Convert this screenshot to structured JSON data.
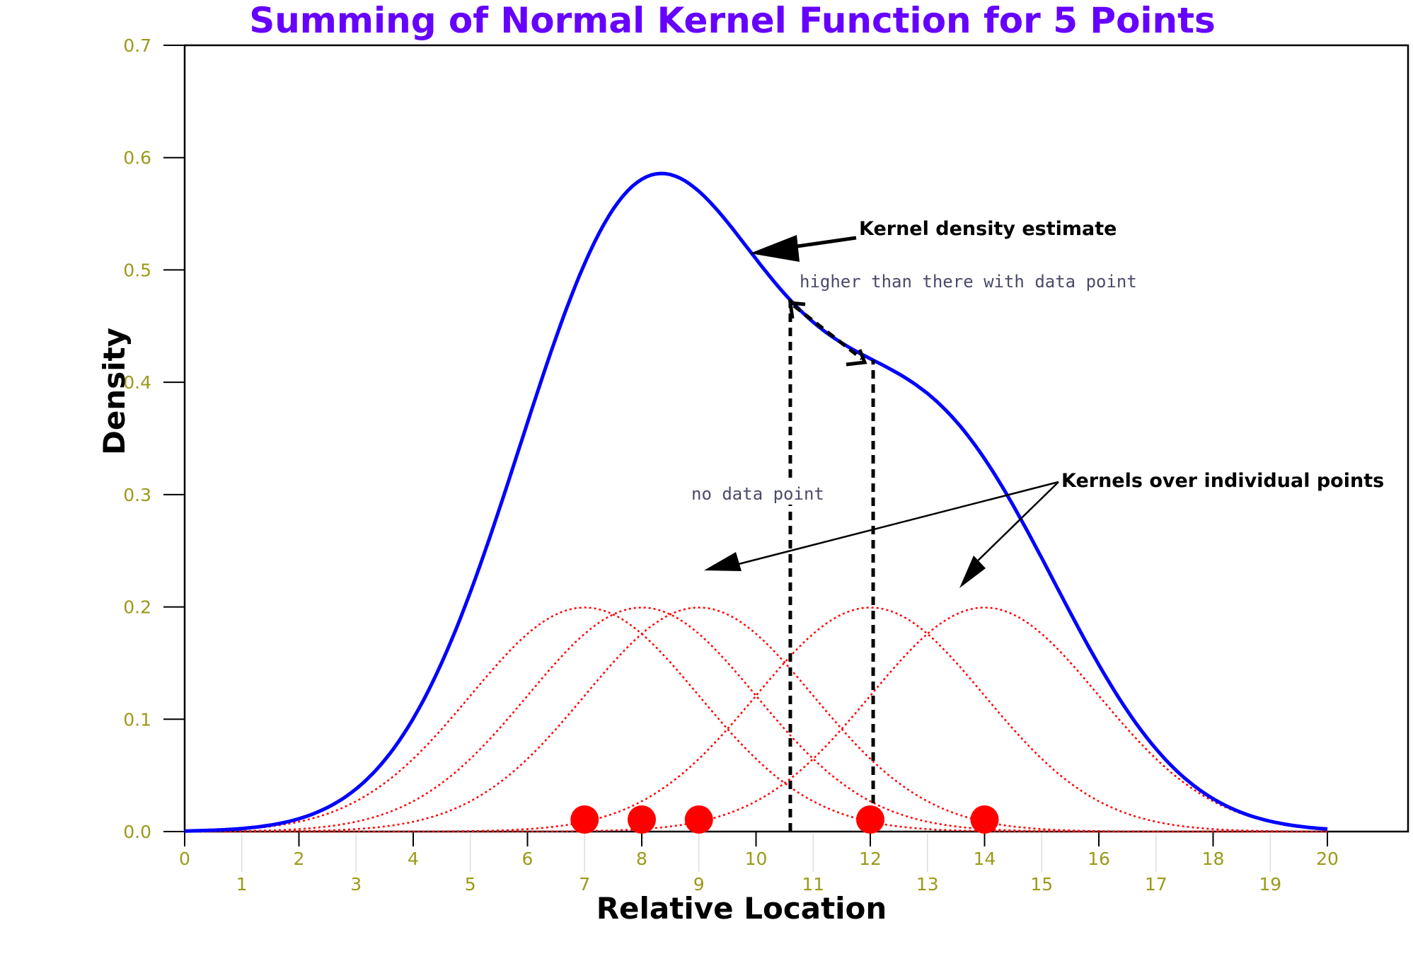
{
  "chart_data": {
    "type": "line",
    "title": "Summing of Normal Kernel Function for 5 Points",
    "xlabel": "Relative Location",
    "ylabel": "Density",
    "xlim": [
      0,
      20
    ],
    "ylim": [
      0,
      0.7
    ],
    "x_ticks_upper": [
      "0",
      "2",
      "4",
      "6",
      "8",
      "10",
      "12",
      "14",
      "16",
      "18",
      "20"
    ],
    "x_ticks_lower": [
      "1",
      "3",
      "5",
      "7",
      "9",
      "11",
      "13",
      "15",
      "17",
      "19"
    ],
    "y_ticks": [
      "0.0",
      "0.1",
      "0.2",
      "0.3",
      "0.4",
      "0.5",
      "0.6",
      "0.7"
    ],
    "grid": false,
    "data_points": [
      7,
      8,
      9,
      12,
      14
    ],
    "kernel": "normal",
    "kernel_sigma": 2,
    "kernel_peak": 0.1995,
    "series": [
      {
        "name": "Kernel density estimate (sum of kernels)",
        "style": "solid",
        "color": "#0000ff",
        "x": [
          0,
          1,
          2,
          3,
          4,
          5,
          6,
          7,
          8,
          8.4,
          9,
          10,
          10.5,
          11,
          12,
          13,
          14,
          15,
          16,
          17,
          18,
          19,
          20
        ],
        "values": [
          0.001,
          0.004,
          0.013,
          0.035,
          0.083,
          0.165,
          0.282,
          0.418,
          0.545,
          0.585,
          0.566,
          0.52,
          0.478,
          0.458,
          0.42,
          0.383,
          0.322,
          0.248,
          0.172,
          0.102,
          0.052,
          0.021,
          0.007
        ]
      },
      {
        "name": "Kernel at 7",
        "style": "dotted",
        "color": "#ff0000",
        "center": 7,
        "peak": 0.1995
      },
      {
        "name": "Kernel at 8",
        "style": "dotted",
        "color": "#ff0000",
        "center": 8,
        "peak": 0.1995
      },
      {
        "name": "Kernel at 9",
        "style": "dotted",
        "color": "#ff0000",
        "center": 9,
        "peak": 0.1995
      },
      {
        "name": "Kernel at 12",
        "style": "dotted",
        "color": "#ff0000",
        "center": 12,
        "peak": 0.1995
      },
      {
        "name": "Kernel at 14",
        "style": "dotted",
        "color": "#ff0000",
        "center": 14,
        "peak": 0.1995
      }
    ],
    "annotations": [
      {
        "text": "Kernel density estimate",
        "style": "bold",
        "arrow_to": [
          10.0,
          0.515
        ]
      },
      {
        "text": "higher than there with data point",
        "style": "handwritten",
        "double_arrow_between": [
          [
            10.75,
            0.47
          ],
          [
            12.0,
            0.42
          ]
        ]
      },
      {
        "text": "no data point",
        "style": "handwritten",
        "vline_at": 10.6
      },
      {
        "text": "Kernels over individual points",
        "style": "bold",
        "arrows_to": [
          [
            9.2,
            0.23
          ],
          [
            13.6,
            0.215
          ]
        ]
      }
    ],
    "vlines": [
      {
        "x": 10.6,
        "ymax": 0.478,
        "style": "dashed",
        "color": "#000000"
      },
      {
        "x": 12.05,
        "ymax": 0.42,
        "style": "dashed",
        "color": "#000000"
      }
    ],
    "colors": {
      "title": "#6600ff",
      "kde": "#0000ff",
      "kernels": "#ff0000",
      "points": "#ff0000",
      "tick_labels": "#9a9a1a"
    }
  }
}
